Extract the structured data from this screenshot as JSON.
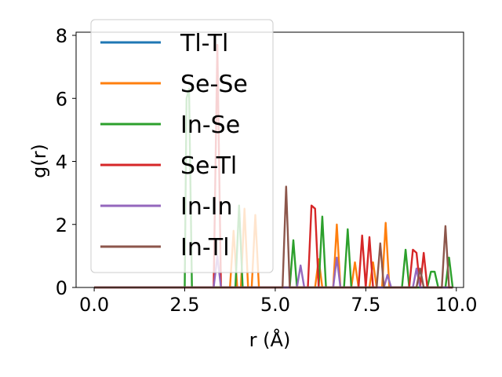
{
  "chart_data": {
    "type": "line",
    "xlabel": "r (Å)",
    "ylabel": "g(r)",
    "xlim": [
      -0.5,
      10.2
    ],
    "ylim": [
      0,
      8.1
    ],
    "xticks": [
      "0.0",
      "2.5",
      "5.0",
      "7.5",
      "10.0"
    ],
    "xtick_values": [
      0,
      2.5,
      5,
      7.5,
      10
    ],
    "yticks": [
      "0",
      "2",
      "4",
      "6",
      "8"
    ],
    "ytick_values": [
      0,
      2,
      4,
      6,
      8
    ],
    "grid": false,
    "legend_position": "upper-left",
    "series": [
      {
        "name": "Tl-Tl",
        "color": "#1f77b4",
        "points": [
          [
            0,
            0
          ],
          [
            9.9,
            0
          ]
        ]
      },
      {
        "name": "Se-Se",
        "color": "#ff7f0e",
        "points": [
          [
            0,
            0
          ],
          [
            3.75,
            0
          ],
          [
            3.85,
            1.8
          ],
          [
            3.95,
            0
          ],
          [
            4.05,
            0
          ],
          [
            4.15,
            2.5
          ],
          [
            4.25,
            0
          ],
          [
            4.35,
            0
          ],
          [
            4.45,
            2.3
          ],
          [
            4.55,
            0
          ],
          [
            6.1,
            0
          ],
          [
            6.2,
            0.9
          ],
          [
            6.3,
            0
          ],
          [
            6.6,
            0
          ],
          [
            6.7,
            2.0
          ],
          [
            6.8,
            0
          ],
          [
            7.1,
            0
          ],
          [
            7.2,
            0.8
          ],
          [
            7.3,
            0
          ],
          [
            7.6,
            0
          ],
          [
            7.7,
            0.8
          ],
          [
            7.8,
            0
          ],
          [
            7.95,
            0
          ],
          [
            8.05,
            2.05
          ],
          [
            8.15,
            0
          ],
          [
            9.9,
            0
          ]
        ]
      },
      {
        "name": "In-Se",
        "color": "#2ca02c",
        "points": [
          [
            0,
            0
          ],
          [
            2.5,
            0
          ],
          [
            2.55,
            6.0
          ],
          [
            2.62,
            6.3
          ],
          [
            2.7,
            0
          ],
          [
            3.9,
            0
          ],
          [
            4.0,
            2.6
          ],
          [
            4.1,
            0
          ],
          [
            5.4,
            0
          ],
          [
            5.5,
            1.5
          ],
          [
            5.6,
            0
          ],
          [
            6.2,
            0
          ],
          [
            6.3,
            2.25
          ],
          [
            6.4,
            0
          ],
          [
            6.9,
            0
          ],
          [
            7.0,
            1.85
          ],
          [
            7.1,
            0
          ],
          [
            8.5,
            0
          ],
          [
            8.6,
            1.2
          ],
          [
            8.7,
            0
          ],
          [
            9.2,
            0
          ],
          [
            9.3,
            0.5
          ],
          [
            9.4,
            0.5
          ],
          [
            9.5,
            0
          ],
          [
            9.7,
            0
          ],
          [
            9.8,
            0.95
          ],
          [
            9.9,
            0
          ]
        ]
      },
      {
        "name": "Se-Tl",
        "color": "#d62728",
        "points": [
          [
            0,
            0
          ],
          [
            3.3,
            0
          ],
          [
            3.4,
            7.7
          ],
          [
            3.5,
            0
          ],
          [
            5.9,
            0
          ],
          [
            6.0,
            2.6
          ],
          [
            6.1,
            2.5
          ],
          [
            6.2,
            0
          ],
          [
            7.3,
            0
          ],
          [
            7.4,
            1.65
          ],
          [
            7.5,
            0
          ],
          [
            7.6,
            1.6
          ],
          [
            7.7,
            0
          ],
          [
            8.7,
            0
          ],
          [
            8.8,
            1.2
          ],
          [
            8.9,
            1.1
          ],
          [
            9.0,
            0
          ],
          [
            9.1,
            1.1
          ],
          [
            9.2,
            0
          ],
          [
            9.9,
            0
          ]
        ]
      },
      {
        "name": "In-In",
        "color": "#9467bd",
        "points": [
          [
            0,
            0
          ],
          [
            3.3,
            0
          ],
          [
            3.4,
            1.0
          ],
          [
            3.5,
            0
          ],
          [
            5.6,
            0
          ],
          [
            5.7,
            0.7
          ],
          [
            5.8,
            0
          ],
          [
            6.6,
            0
          ],
          [
            6.7,
            0.95
          ],
          [
            6.8,
            0
          ],
          [
            8.0,
            0
          ],
          [
            8.1,
            0.4
          ],
          [
            8.2,
            0
          ],
          [
            8.8,
            0
          ],
          [
            8.9,
            0.6
          ],
          [
            9.0,
            0
          ],
          [
            9.9,
            0
          ]
        ]
      },
      {
        "name": "In-Tl",
        "color": "#8c564b",
        "points": [
          [
            0,
            0
          ],
          [
            5.2,
            0
          ],
          [
            5.3,
            3.2
          ],
          [
            5.4,
            0
          ],
          [
            7.8,
            0
          ],
          [
            7.9,
            1.4
          ],
          [
            8.0,
            0
          ],
          [
            8.9,
            0
          ],
          [
            9.0,
            0.6
          ],
          [
            9.1,
            0
          ],
          [
            9.6,
            0
          ],
          [
            9.7,
            1.95
          ],
          [
            9.8,
            0
          ],
          [
            9.9,
            0
          ]
        ]
      }
    ]
  }
}
